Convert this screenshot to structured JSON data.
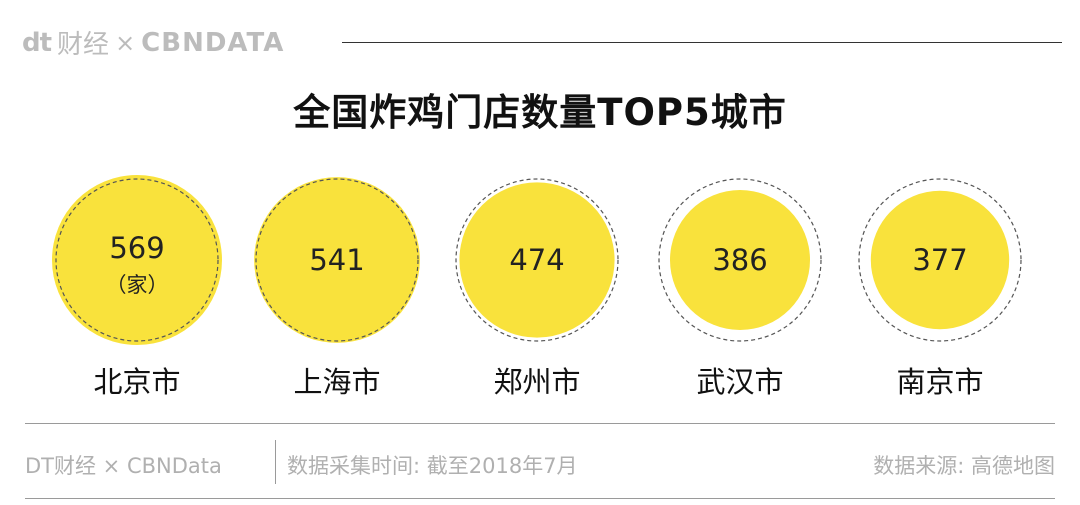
{
  "header": {
    "brand_dt": "dt",
    "brand_cn": "财经",
    "brand_x": "×",
    "brand_cbn": "CBNDATA"
  },
  "title": "全国炸鸡门店数量TOP5城市",
  "chart_data": {
    "type": "bubble",
    "title": "全国炸鸡门店数量TOP5城市",
    "unit_label": "（家）",
    "categories": [
      "北京市",
      "上海市",
      "郑州市",
      "武汉市",
      "南京市"
    ],
    "values": [
      569,
      541,
      474,
      386,
      377
    ],
    "value_labels": [
      "569",
      "541",
      "474",
      "386",
      "377"
    ],
    "colors": {
      "fill": "#f9e23c",
      "outline": "#555555",
      "text": "#222222"
    }
  },
  "footer": {
    "source_left": "DT财经 × CBNData",
    "date": "数据采集时间: 截至2018年7月",
    "source_right": "数据来源: 高德地图"
  }
}
